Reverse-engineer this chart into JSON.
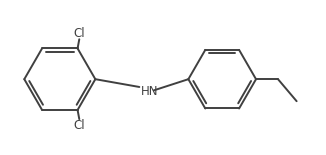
{
  "bg_color": "#ffffff",
  "line_color": "#404040",
  "line_width": 1.4,
  "label_color": "#404040",
  "label_fontsize": 8.5,
  "figsize": [
    3.26,
    1.55
  ],
  "dpi": 100,
  "xlim": [
    0,
    9.5
  ],
  "ylim": [
    0,
    4.5
  ]
}
